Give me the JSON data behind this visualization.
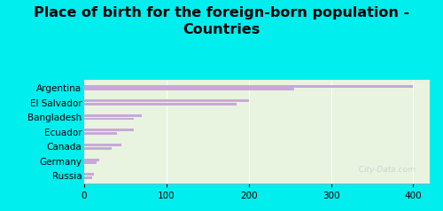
{
  "title": "Place of birth for the foreign-born population -\nCountries",
  "categories": [
    "Argentina",
    "El Salvador",
    "Bangladesh",
    "Ecuador",
    "Canada",
    "Germany",
    "Russia"
  ],
  "values1": [
    400,
    200,
    70,
    60,
    45,
    18,
    12
  ],
  "values2": [
    255,
    185,
    60,
    40,
    33,
    15,
    10
  ],
  "bar_color": "#c9a8d8",
  "background_color": "#00eeee",
  "plot_bg": "#e8f4e0",
  "xlim": [
    0,
    420
  ],
  "xticks": [
    0,
    100,
    200,
    300,
    400
  ],
  "title_fontsize": 11.5,
  "label_fontsize": 7.5,
  "tick_fontsize": 7.5,
  "bar_height": 0.18,
  "bar_sep": 0.22,
  "watermark": "  City-Data.com"
}
